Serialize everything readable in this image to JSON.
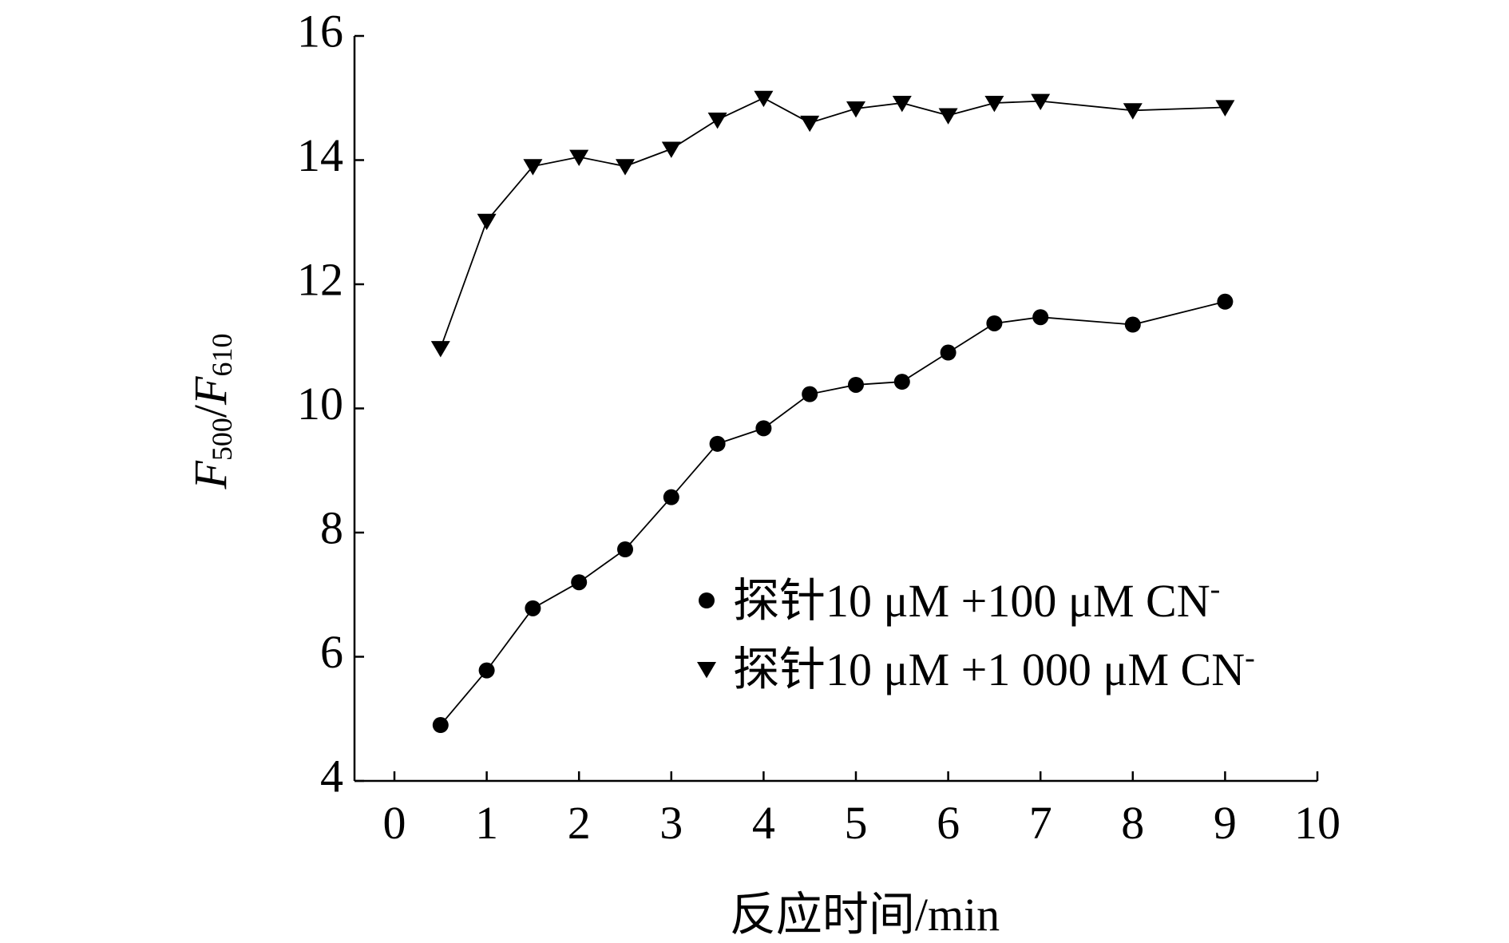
{
  "chart_data": {
    "type": "line",
    "title": "",
    "xlabel": "反应时间/min",
    "ylabel": {
      "parts": [
        {
          "text": "F",
          "italic": true
        },
        {
          "text": "500",
          "sub": true
        },
        {
          "text": "/",
          "italic": false
        },
        {
          "text": "F",
          "italic": true
        },
        {
          "text": "610",
          "sub": true
        }
      ]
    },
    "xlim": [
      0,
      10
    ],
    "ylim": [
      4,
      16
    ],
    "xticks": [
      0,
      1,
      2,
      3,
      4,
      5,
      6,
      7,
      8,
      9,
      10
    ],
    "yticks": [
      4,
      6,
      8,
      10,
      12,
      14,
      16
    ],
    "grid": false,
    "legend_position": "lower-right",
    "series": [
      {
        "name": "探针10 μM +100 μM CN",
        "name_sup": "-",
        "marker": "circle",
        "color": "#000000",
        "x": [
          0.5,
          1,
          1.5,
          2,
          2.5,
          3,
          3.5,
          4,
          4.5,
          5,
          5.5,
          6,
          6.5,
          7,
          8,
          9
        ],
        "values": [
          4.9,
          5.78,
          6.78,
          7.2,
          7.73,
          8.57,
          9.43,
          9.68,
          10.23,
          10.38,
          10.43,
          10.9,
          11.37,
          11.47,
          11.35,
          11.72
        ]
      },
      {
        "name": "探针10 μM +1 000 μM CN",
        "name_sup": "-",
        "marker": "triangle-down",
        "color": "#000000",
        "x": [
          0.5,
          1,
          1.5,
          2,
          2.5,
          3,
          3.5,
          4,
          4.5,
          5,
          5.5,
          6,
          6.5,
          7,
          8,
          9
        ],
        "values": [
          10.97,
          13.02,
          13.9,
          14.05,
          13.9,
          14.18,
          14.65,
          15.0,
          14.6,
          14.83,
          14.92,
          14.72,
          14.92,
          14.95,
          14.8,
          14.85
        ]
      }
    ]
  }
}
